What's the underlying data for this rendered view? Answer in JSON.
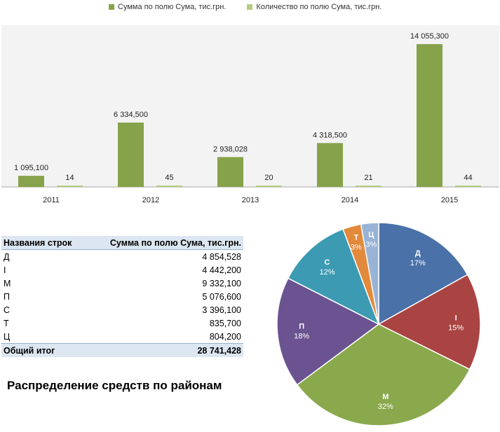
{
  "colors": {
    "sum_series": "#86a34b",
    "count_series": "#b3cc7c",
    "plot_bg": "#f3f3f3",
    "table_header_bg": "#dce6f1",
    "pie": [
      "#4a71a8",
      "#a94442",
      "#8aa94d",
      "#6a5390",
      "#3c9ab2",
      "#e2893b",
      "#98b3d6"
    ]
  },
  "chart_data": [
    {
      "type": "bar",
      "categories": [
        "2011",
        "2012",
        "2013",
        "2014",
        "2015"
      ],
      "series": [
        {
          "name": "Сумма по полю Сума, тис.грн.",
          "values": [
            1095100,
            6334500,
            2938028,
            4318500,
            14055300
          ],
          "labels": [
            "1 095,100",
            "6 334,500",
            "2 938,028",
            "4 318,500",
            "14 055,300"
          ]
        },
        {
          "name": "Количество по полю Сума, тис.грн.",
          "values": [
            14,
            45,
            20,
            21,
            44
          ],
          "labels": [
            "14",
            "45",
            "20",
            "21",
            "44"
          ]
        }
      ],
      "ylim": [
        0,
        16000000
      ],
      "grid": false,
      "legend": "top"
    },
    {
      "type": "pie",
      "slices": [
        {
          "label": "Д",
          "value": 4854528,
          "percent": "17%"
        },
        {
          "label": "І",
          "value": 4442200,
          "percent": "15%"
        },
        {
          "label": "М",
          "value": 9332100,
          "percent": "32%"
        },
        {
          "label": "П",
          "value": 5076600,
          "percent": "18%"
        },
        {
          "label": "С",
          "value": 3396100,
          "percent": "12%"
        },
        {
          "label": "Т",
          "value": 835700,
          "percent": "3%"
        },
        {
          "label": "Ц",
          "value": 804200,
          "percent": "3%"
        }
      ]
    }
  ],
  "pivot_table": {
    "headers": [
      "Названия строк",
      "Сумма по полю Сума, тис.грн."
    ],
    "rows": [
      [
        "Д",
        "4 854,528"
      ],
      [
        "І",
        "4 442,200"
      ],
      [
        "М",
        "9 332,100"
      ],
      [
        "П",
        "5 076,600"
      ],
      [
        "С",
        "3 396,100"
      ],
      [
        "Т",
        "835,700"
      ],
      [
        "Ц",
        "804,200"
      ]
    ],
    "total": [
      "Общий итог",
      "28 741,428"
    ]
  },
  "caption": "Распределение средств по районам"
}
